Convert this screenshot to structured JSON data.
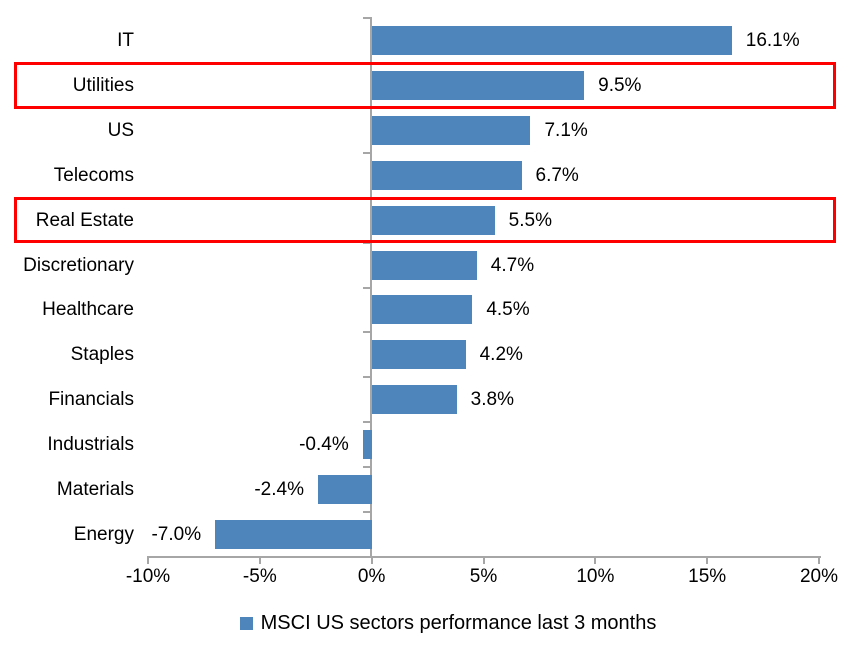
{
  "chart": {
    "colors": {
      "bar": "#4e86bc",
      "highlight_border": "#ff0000",
      "axis": "#a6a6a6",
      "text": "#000000",
      "background": "#ffffff"
    },
    "highlighted_categories": [
      "Utilities",
      "Real Estate"
    ]
  },
  "chart_data": {
    "type": "bar",
    "orientation": "horizontal",
    "title": "",
    "categories": [
      "IT",
      "Utilities",
      "US",
      "Telecoms",
      "Real Estate",
      "Discretionary",
      "Healthcare",
      "Staples",
      "Financials",
      "Industrials",
      "Materials",
      "Energy"
    ],
    "values": [
      16.1,
      9.5,
      7.1,
      6.7,
      5.5,
      4.7,
      4.5,
      4.2,
      3.8,
      -0.4,
      -2.4,
      -7.0
    ],
    "value_labels": [
      "16.1%",
      "9.5%",
      "7.1%",
      "6.7%",
      "5.5%",
      "4.7%",
      "4.5%",
      "4.2%",
      "3.8%",
      "-0.4%",
      "-2.4%",
      "-7.0%"
    ],
    "x_ticks": [
      -10,
      -5,
      0,
      5,
      10,
      15,
      20
    ],
    "x_tick_labels": [
      "-10%",
      "-5%",
      "0%",
      "5%",
      "10%",
      "15%",
      "20%"
    ],
    "xlim": [
      -10,
      20
    ],
    "grid": false,
    "legend": "MSCI US sectors performance last 3 months",
    "legend_position": "bottom"
  }
}
